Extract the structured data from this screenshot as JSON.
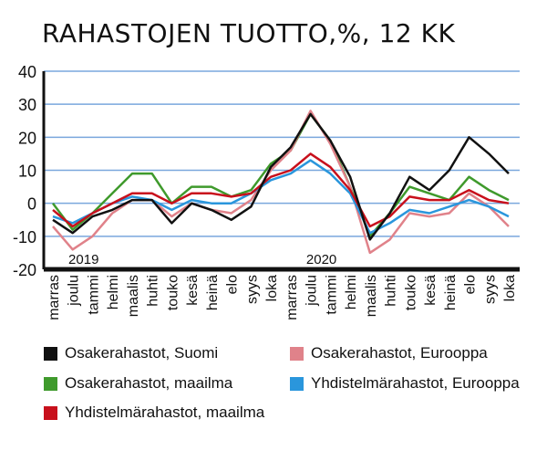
{
  "chart_data": {
    "type": "line",
    "title": "RAHASTOJEN TUOTTO,%, 12 KK",
    "categories": [
      "marras",
      "joulu",
      "tammi",
      "helmi",
      "maalis",
      "huhti",
      "touko",
      "kesä",
      "heinä",
      "elo",
      "syys",
      "loka",
      "marras",
      "joulu",
      "tammi",
      "helmi",
      "maalis",
      "huhti",
      "touko",
      "kesä",
      "heinä",
      "elo",
      "syys",
      "loka"
    ],
    "year_labels": [
      {
        "label": "2019",
        "at": "joulu"
      },
      {
        "label": "2020",
        "at": "joulu"
      }
    ],
    "ylim": [
      -20,
      40
    ],
    "yticks": [
      "40",
      "30",
      "20",
      "10",
      "0",
      "-10",
      "-20"
    ],
    "grid": true,
    "legend_position": "bottom",
    "series": [
      {
        "name": "Osakerahastot, Suomi",
        "color": "#111111",
        "values": [
          -5,
          -9,
          -4,
          -2,
          1,
          1,
          -6,
          0,
          -2,
          -5,
          -1,
          11,
          17,
          27,
          19,
          8,
          -11,
          -3,
          8,
          4,
          10,
          20,
          15,
          9
        ]
      },
      {
        "name": "Osakerahastot, Eurooppa",
        "color": "#e0828a",
        "values": [
          -7,
          -14,
          -10,
          -3,
          1,
          1,
          -4,
          0,
          -2,
          -3,
          1,
          10,
          16,
          28,
          18,
          5,
          -15,
          -11,
          -3,
          -4,
          -3,
          3,
          -1,
          -7
        ]
      },
      {
        "name": "Osakerahastot, maailma",
        "color": "#3f9a2c",
        "values": [
          0,
          -8,
          -3,
          3,
          9,
          9,
          0,
          5,
          5,
          2,
          4,
          12,
          16,
          27,
          19,
          5,
          -10,
          -3,
          5,
          3,
          1,
          8,
          4,
          1
        ]
      },
      {
        "name": "Yhdistelmärahastot, Eurooppa",
        "color": "#2a96dc",
        "values": [
          -4,
          -6,
          -3,
          0,
          2,
          1,
          -2,
          1,
          0,
          0,
          3,
          7,
          9,
          13,
          9,
          3,
          -9,
          -6,
          -2,
          -3,
          -1,
          1,
          -1,
          -4
        ]
      },
      {
        "name": "Yhdistelmärahastot, maailma",
        "color": "#c8101c",
        "values": [
          -2,
          -7,
          -3,
          0,
          3,
          3,
          0,
          3,
          3,
          2,
          3,
          8,
          10,
          15,
          11,
          4,
          -7,
          -4,
          2,
          1,
          1,
          4,
          1,
          0
        ]
      }
    ]
  }
}
